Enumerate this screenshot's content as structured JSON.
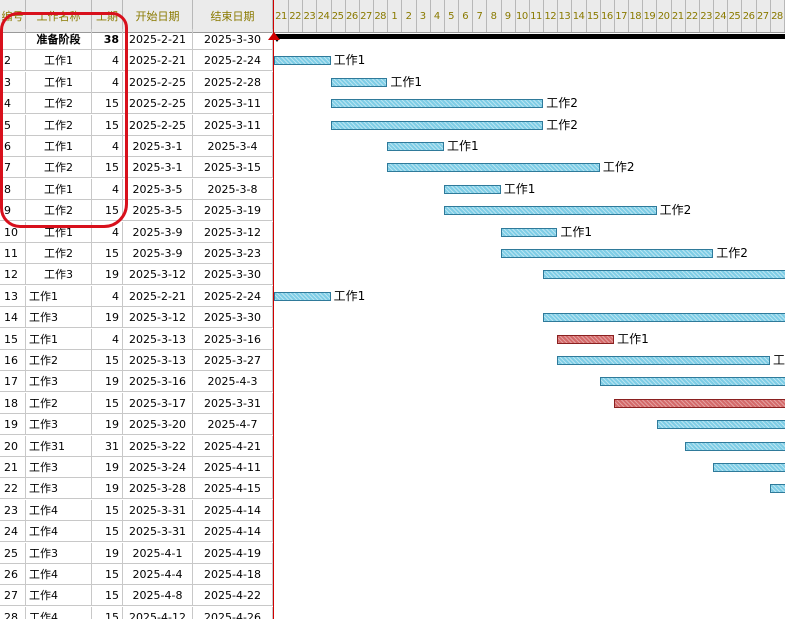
{
  "header": {
    "col_id": "编号",
    "col_name": "工作名称",
    "col_dur": "工期",
    "col_start": "开始日期",
    "col_end": "结束日期",
    "timeline_start": "2025-2-21",
    "day_labels": [
      "21",
      "22",
      "23",
      "24",
      "25",
      "26",
      "27",
      "28",
      "1",
      "2",
      "3",
      "4",
      "5",
      "6",
      "7",
      "8",
      "9",
      "10",
      "11",
      "12",
      "13",
      "14",
      "15",
      "16",
      "17",
      "18",
      "19",
      "20",
      "21",
      "22",
      "23",
      "24",
      "25",
      "26",
      "27",
      "28"
    ]
  },
  "rows": [
    {
      "id": "",
      "name": "准备阶段",
      "dur": "38",
      "start": "2025-2-21",
      "end": "2025-3-30",
      "summary": true
    },
    {
      "id": "2",
      "name": "工作1",
      "dur": "4",
      "start": "2025-2-21",
      "end": "2025-2-24",
      "label": "工作1"
    },
    {
      "id": "3",
      "name": "工作1",
      "dur": "4",
      "start": "2025-2-25",
      "end": "2025-2-28",
      "label": "工作1"
    },
    {
      "id": "4",
      "name": "工作2",
      "dur": "15",
      "start": "2025-2-25",
      "end": "2025-3-11",
      "label": "工作2"
    },
    {
      "id": "5",
      "name": "工作2",
      "dur": "15",
      "start": "2025-2-25",
      "end": "2025-3-11",
      "label": "工作2"
    },
    {
      "id": "6",
      "name": "工作1",
      "dur": "4",
      "start": "2025-3-1",
      "end": "2025-3-4",
      "label": "工作1"
    },
    {
      "id": "7",
      "name": "工作2",
      "dur": "15",
      "start": "2025-3-1",
      "end": "2025-3-15",
      "label": "工作2"
    },
    {
      "id": "8",
      "name": "工作1",
      "dur": "4",
      "start": "2025-3-5",
      "end": "2025-3-8",
      "label": "工作1"
    },
    {
      "id": "9",
      "name": "工作2",
      "dur": "15",
      "start": "2025-3-5",
      "end": "2025-3-19",
      "label": "工作2"
    },
    {
      "id": "10",
      "name": "工作1",
      "dur": "4",
      "start": "2025-3-9",
      "end": "2025-3-12",
      "label": "工作1"
    },
    {
      "id": "11",
      "name": "工作2",
      "dur": "15",
      "start": "2025-3-9",
      "end": "2025-3-23",
      "label": "工作2"
    },
    {
      "id": "12",
      "name": "工作3",
      "dur": "19",
      "start": "2025-3-12",
      "end": "2025-3-30",
      "label": ""
    },
    {
      "id": "13",
      "name": "工作1",
      "dur": "4",
      "start": "2025-2-21",
      "end": "2025-2-24",
      "label": "工作1",
      "left": true
    },
    {
      "id": "14",
      "name": "工作3",
      "dur": "19",
      "start": "2025-3-12",
      "end": "2025-3-30",
      "label": "",
      "left": true
    },
    {
      "id": "15",
      "name": "工作1",
      "dur": "4",
      "start": "2025-3-13",
      "end": "2025-3-16",
      "label": "工作1",
      "left": true,
      "critical": true
    },
    {
      "id": "16",
      "name": "工作2",
      "dur": "15",
      "start": "2025-3-13",
      "end": "2025-3-27",
      "label": "工",
      "left": true
    },
    {
      "id": "17",
      "name": "工作3",
      "dur": "19",
      "start": "2025-3-16",
      "end": "2025-4-3",
      "label": "",
      "left": true
    },
    {
      "id": "18",
      "name": "工作2",
      "dur": "15",
      "start": "2025-3-17",
      "end": "2025-3-31",
      "label": "",
      "left": true,
      "critical": true
    },
    {
      "id": "19",
      "name": "工作3",
      "dur": "19",
      "start": "2025-3-20",
      "end": "2025-4-7",
      "label": "",
      "left": true
    },
    {
      "id": "20",
      "name": "工作31",
      "dur": "31",
      "start": "2025-3-22",
      "end": "2025-4-21",
      "label": "",
      "left": true
    },
    {
      "id": "21",
      "name": "工作3",
      "dur": "19",
      "start": "2025-3-24",
      "end": "2025-4-11",
      "label": "",
      "left": true
    },
    {
      "id": "22",
      "name": "工作3",
      "dur": "19",
      "start": "2025-3-28",
      "end": "2025-4-15",
      "label": "",
      "left": true
    },
    {
      "id": "23",
      "name": "工作4",
      "dur": "15",
      "start": "2025-3-31",
      "end": "2025-4-14",
      "label": "",
      "left": true
    },
    {
      "id": "24",
      "name": "工作4",
      "dur": "15",
      "start": "2025-3-31",
      "end": "2025-4-14",
      "label": "",
      "left": true
    },
    {
      "id": "25",
      "name": "工作3",
      "dur": "19",
      "start": "2025-4-1",
      "end": "2025-4-19",
      "label": "",
      "left": true
    },
    {
      "id": "26",
      "name": "工作4",
      "dur": "15",
      "start": "2025-4-4",
      "end": "2025-4-18",
      "label": "",
      "left": true
    },
    {
      "id": "27",
      "name": "工作4",
      "dur": "15",
      "start": "2025-4-8",
      "end": "2025-4-22",
      "label": "",
      "left": true
    },
    {
      "id": "28",
      "name": "工作4",
      "dur": "15",
      "start": "2025-4-12",
      "end": "2025-4-26",
      "label": "",
      "left": true
    }
  ]
}
